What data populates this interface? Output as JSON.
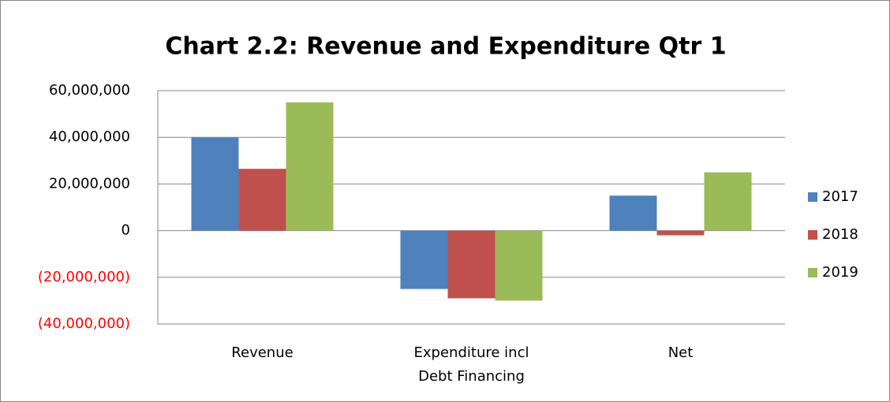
{
  "chart_data": {
    "type": "bar",
    "title": "Chart 2.2: Revenue and Expenditure Qtr 1",
    "categories": [
      "Revenue",
      "Expenditure incl Debt Financing",
      "Net"
    ],
    "series": [
      {
        "name": "2017",
        "color": "#4f81bd",
        "values": [
          40000000,
          -25000000,
          15000000
        ]
      },
      {
        "name": "2018",
        "color": "#c0504d",
        "values": [
          26500000,
          -29000000,
          -2000000
        ]
      },
      {
        "name": "2019",
        "color": "#9bbb59",
        "values": [
          55000000,
          -30000000,
          25000000
        ]
      }
    ],
    "ylim": [
      -40000000,
      60000000
    ],
    "yticks": [
      {
        "value": -40000000,
        "label": "(40,000,000)"
      },
      {
        "value": -20000000,
        "label": "(20,000,000)"
      },
      0,
      {
        "value": 20000000,
        "label": "20,000,000"
      },
      {
        "value": 40000000,
        "label": "40,000,000"
      },
      {
        "value": 60000000,
        "label": "60,000,000"
      }
    ],
    "grid": true,
    "negative_tick_color": "#ff0000",
    "legend": "right"
  }
}
